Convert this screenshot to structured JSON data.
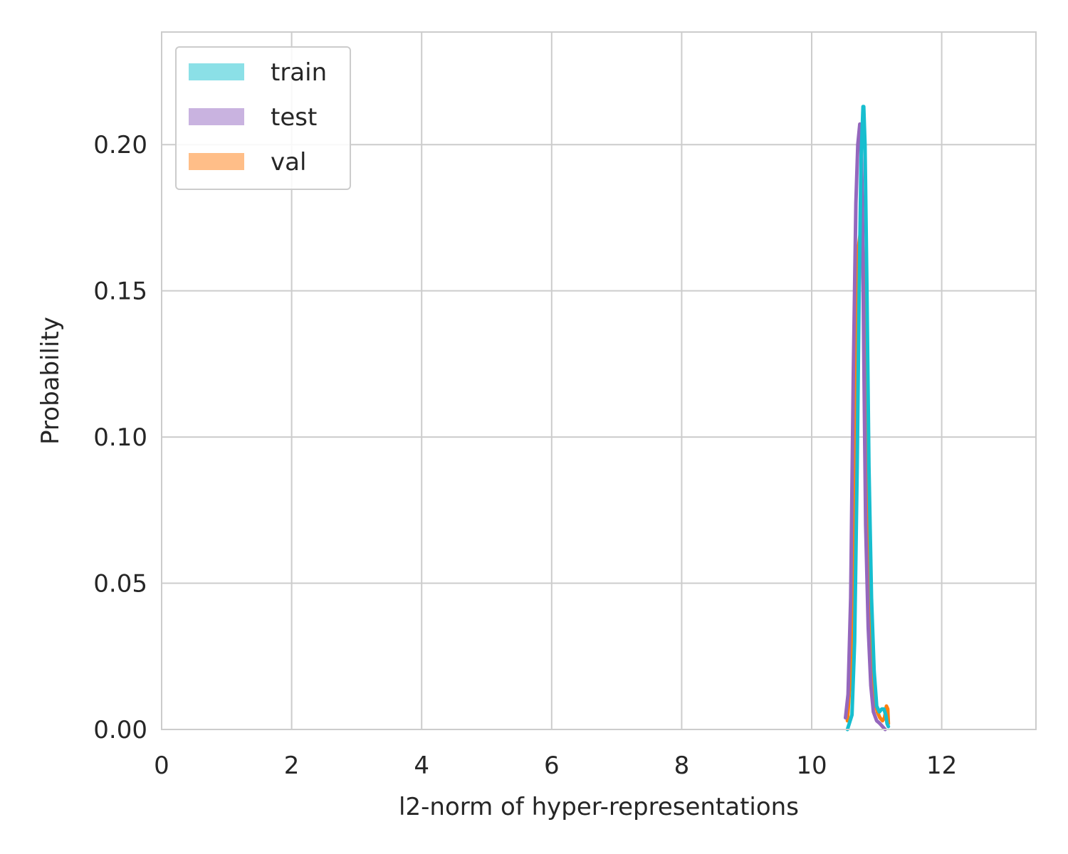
{
  "chart_data": {
    "type": "line",
    "xlabel": "l2-norm of hyper-representations",
    "ylabel": "Probability",
    "xlim": [
      0,
      13.45
    ],
    "ylim": [
      0,
      0.2385
    ],
    "xticks": [
      0,
      2,
      4,
      6,
      8,
      10,
      12
    ],
    "xtick_labels": [
      "0",
      "2",
      "4",
      "6",
      "8",
      "10",
      "12"
    ],
    "yticks": [
      0.0,
      0.05,
      0.1,
      0.15,
      0.2
    ],
    "ytick_labels": [
      "0.00",
      "0.05",
      "0.10",
      "0.15",
      "0.20"
    ],
    "grid": true,
    "legend_position": "top-left",
    "series": [
      {
        "name": "train",
        "color": "#17becf",
        "legend_color": "#8be0e7",
        "x": [
          10.55,
          10.62,
          10.66,
          10.7,
          10.73,
          10.76,
          10.79,
          10.8,
          10.82,
          10.85,
          10.88,
          10.92,
          10.96,
          11.0,
          11.04,
          11.08,
          11.11,
          11.14,
          11.16,
          11.18
        ],
        "y": [
          0.0,
          0.005,
          0.03,
          0.09,
          0.15,
          0.195,
          0.213,
          0.213,
          0.2,
          0.15,
          0.09,
          0.045,
          0.02,
          0.008,
          0.006,
          0.007,
          0.007,
          0.005,
          0.002,
          0.001
        ]
      },
      {
        "name": "test",
        "color": "#9467bd",
        "legend_color": "#c9b3e0",
        "x": [
          10.52,
          10.56,
          10.6,
          10.64,
          10.68,
          10.71,
          10.74,
          10.76,
          10.78,
          10.8,
          10.83,
          10.87,
          10.91,
          10.95,
          11.0,
          11.05,
          11.09,
          11.13
        ],
        "y": [
          0.004,
          0.012,
          0.045,
          0.12,
          0.18,
          0.2,
          0.207,
          0.2,
          0.18,
          0.13,
          0.07,
          0.035,
          0.015,
          0.006,
          0.003,
          0.002,
          0.001,
          0.0
        ]
      },
      {
        "name": "val",
        "color": "#ff7f0e",
        "legend_color": "#ffbe88",
        "x": [
          10.55,
          10.6,
          10.64,
          10.68,
          10.72,
          10.75,
          10.78,
          10.81,
          10.85,
          10.89,
          10.93,
          10.97,
          11.01,
          11.05,
          11.09,
          11.12,
          11.15,
          11.17,
          11.18
        ],
        "y": [
          0.003,
          0.02,
          0.07,
          0.14,
          0.165,
          0.17,
          0.168,
          0.15,
          0.1,
          0.05,
          0.022,
          0.01,
          0.006,
          0.004,
          0.003,
          0.004,
          0.008,
          0.007,
          0.002
        ]
      }
    ]
  }
}
